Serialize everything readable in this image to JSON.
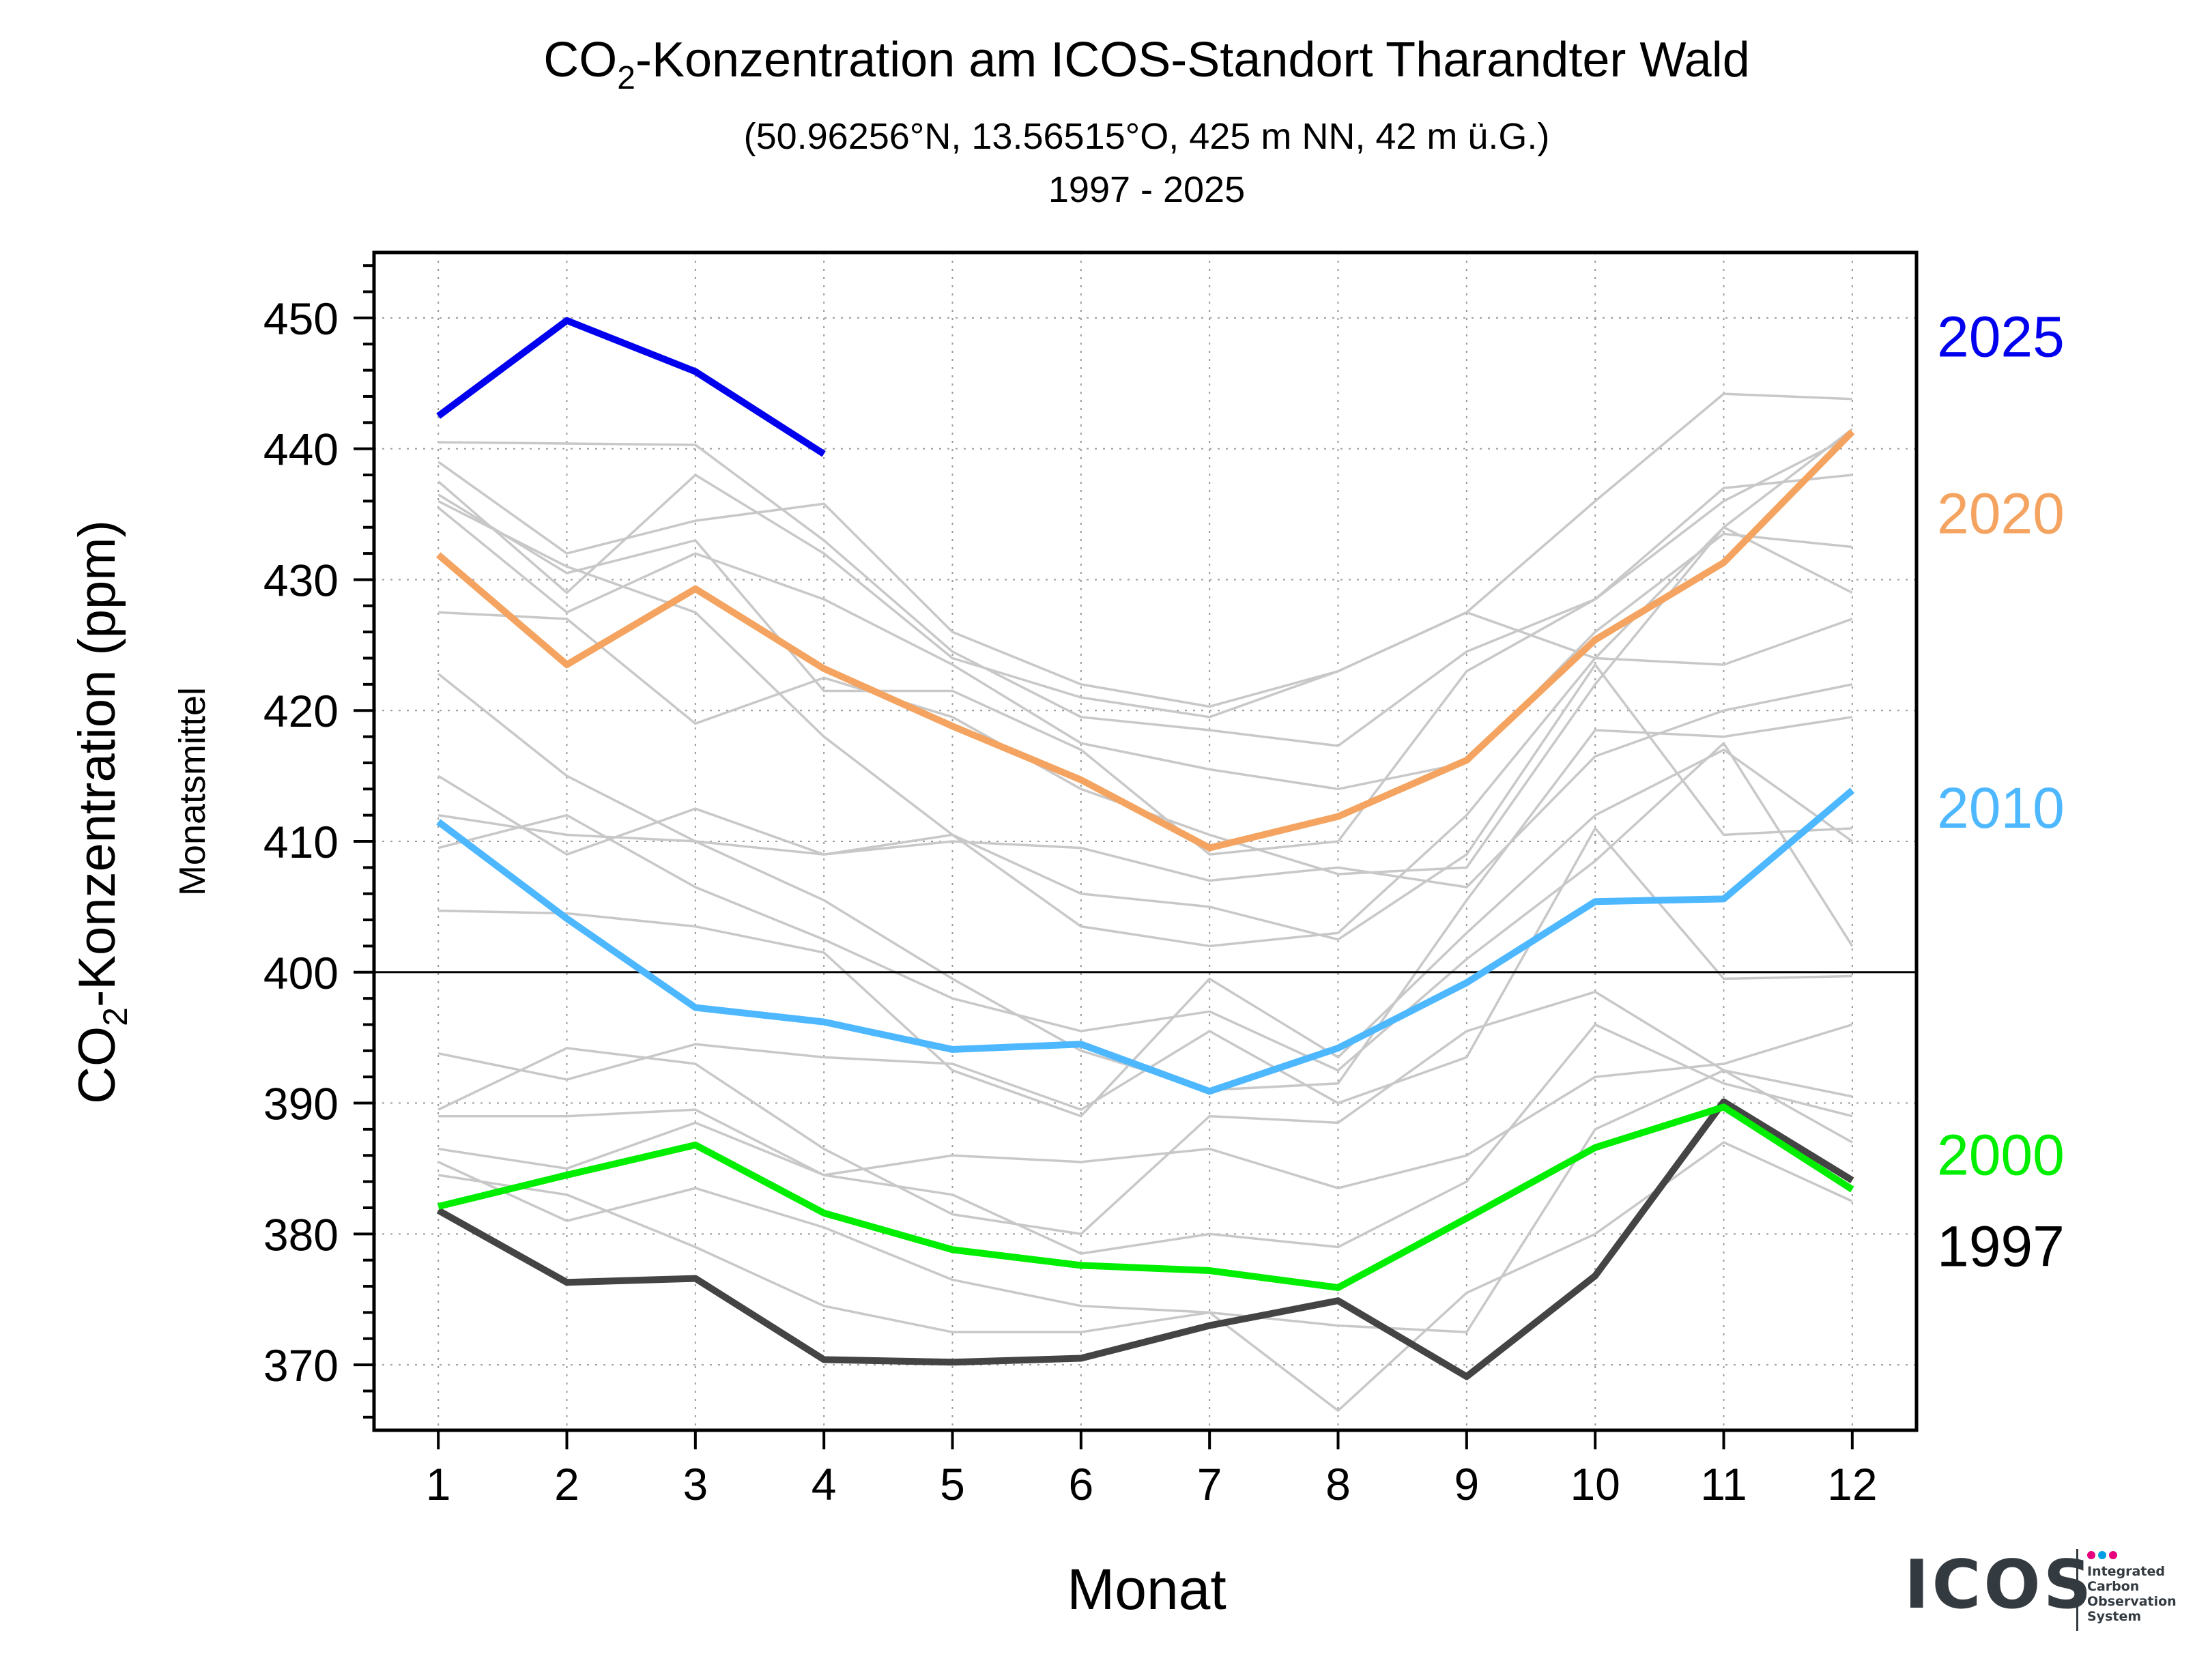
{
  "chart_data": {
    "type": "line",
    "title_main": "CO",
    "title_sub_index": "2",
    "title_rest": "-Konzentration am ICOS-Standort Tharandter Wald",
    "subtitle": "(50.96256°N, 13.56515°O, 425 m NN, 42 m ü.G.)",
    "period": "1997 - 2025",
    "ylabel_main": "CO",
    "ylabel_sub_index": "2",
    "ylabel_rest": "-Konzentration (ppm)",
    "ylabel_secondary": "Monatsmittel",
    "xlabel": "Monat",
    "x": [
      1,
      2,
      3,
      4,
      5,
      6,
      7,
      8,
      9,
      10,
      11,
      12
    ],
    "xlim": [
      0.5,
      12.5
    ],
    "ylim": [
      365,
      455
    ],
    "yticks": [
      370,
      380,
      390,
      400,
      410,
      420,
      430,
      440,
      450
    ],
    "reference_line": 400,
    "grid": true,
    "highlight_series": [
      {
        "name": "2025",
        "color": "#0000ee",
        "values": [
          442.5,
          449.8,
          445.9,
          439.6,
          null,
          null,
          null,
          null,
          null,
          null,
          null,
          null
        ]
      },
      {
        "name": "2020",
        "color": "#f4a460",
        "values": [
          431.9,
          423.5,
          429.3,
          423.2,
          418.8,
          414.7,
          409.5,
          411.9,
          416.2,
          425.4,
          431.3,
          441.3
        ]
      },
      {
        "name": "2010",
        "color": "#4db8ff",
        "values": [
          411.5,
          404.1,
          397.3,
          396.2,
          394.1,
          394.5,
          390.9,
          394.2,
          399.2,
          405.4,
          405.6,
          413.9
        ]
      },
      {
        "name": "2000",
        "color": "#00ee00",
        "values": [
          382.1,
          384.5,
          386.8,
          381.6,
          378.8,
          377.6,
          377.2,
          375.9,
          381.2,
          386.6,
          389.7,
          383.4
        ]
      },
      {
        "name": "1997",
        "color": "#444444",
        "values": [
          381.8,
          376.3,
          376.6,
          370.4,
          370.2,
          370.5,
          373.0,
          374.9,
          369.1,
          376.8,
          390.1,
          384.1
        ]
      }
    ],
    "background_series": [
      [
        436.0,
        431.0,
        427.5,
        418.0,
        410.5,
        403.5,
        402.0,
        403.0,
        412.0,
        424.0,
        434.0,
        441.5
      ],
      [
        437.5,
        429.0,
        438.0,
        432.0,
        424.0,
        421.0,
        419.5,
        423.0,
        427.5,
        436.0,
        444.2,
        443.8
      ],
      [
        440.5,
        440.4,
        440.3,
        433.0,
        424.5,
        419.5,
        418.5,
        417.3,
        424.5,
        428.5,
        436.0,
        441.0
      ],
      [
        439.0,
        432.0,
        434.5,
        435.8,
        426.0,
        422.0,
        420.3,
        423.0,
        427.5,
        424.0,
        423.5,
        427.0
      ],
      [
        436.5,
        430.5,
        433.0,
        421.5,
        421.5,
        417.0,
        409.0,
        410.0,
        423.0,
        428.5,
        437.0,
        438.0
      ],
      [
        435.5,
        427.5,
        432.0,
        428.5,
        423.5,
        417.5,
        415.5,
        414.0,
        416.0,
        426.0,
        433.5,
        432.5
      ],
      [
        427.5,
        427.0,
        419.0,
        422.5,
        419.5,
        414.0,
        410.5,
        407.5,
        408.0,
        422.0,
        434.0,
        429.0
      ],
      [
        422.8,
        415.0,
        410.0,
        405.5,
        399.5,
        394.0,
        391.0,
        391.5,
        405.5,
        418.5,
        418.0,
        419.5
      ],
      [
        415.0,
        409.0,
        412.5,
        409.0,
        410.0,
        409.5,
        407.0,
        408.0,
        406.5,
        416.5,
        420.0,
        422.0
      ],
      [
        412.0,
        410.5,
        410.0,
        409.0,
        410.5,
        406.0,
        405.0,
        402.5,
        409.0,
        423.5,
        410.5,
        411.0
      ],
      [
        409.5,
        412.0,
        406.5,
        402.5,
        398.0,
        395.5,
        397.0,
        392.5,
        401.0,
        408.5,
        417.5,
        402.0
      ],
      [
        404.7,
        404.5,
        403.5,
        401.5,
        392.5,
        389.0,
        399.5,
        393.5,
        403.0,
        412.0,
        417.0,
        410.0
      ],
      [
        393.8,
        391.8,
        394.5,
        393.5,
        393.0,
        389.5,
        395.5,
        390.0,
        393.5,
        411.0,
        399.5,
        399.7
      ],
      [
        389.5,
        394.2,
        393.0,
        386.5,
        381.5,
        380.0,
        389.0,
        388.5,
        395.5,
        398.5,
        392.5,
        390.5
      ],
      [
        389.0,
        389.0,
        389.5,
        384.5,
        386.0,
        385.5,
        386.5,
        383.5,
        386.0,
        392.0,
        393.0,
        396.0
      ],
      [
        386.5,
        385.0,
        388.5,
        384.5,
        383.0,
        378.5,
        380.0,
        379.0,
        384.0,
        396.0,
        391.5,
        389.0
      ],
      [
        385.5,
        381.0,
        383.5,
        380.5,
        376.5,
        374.5,
        374.0,
        373.0,
        372.5,
        388.0,
        392.5,
        387.0
      ],
      [
        384.5,
        383.0,
        379.0,
        374.5,
        372.5,
        372.5,
        374.0,
        366.5,
        375.5,
        380.0,
        387.0,
        382.5
      ]
    ]
  },
  "logo": {
    "name": "ICOS",
    "line1": "Integrated",
    "line2": "Carbon",
    "line3": "Observation",
    "line4": "System"
  }
}
